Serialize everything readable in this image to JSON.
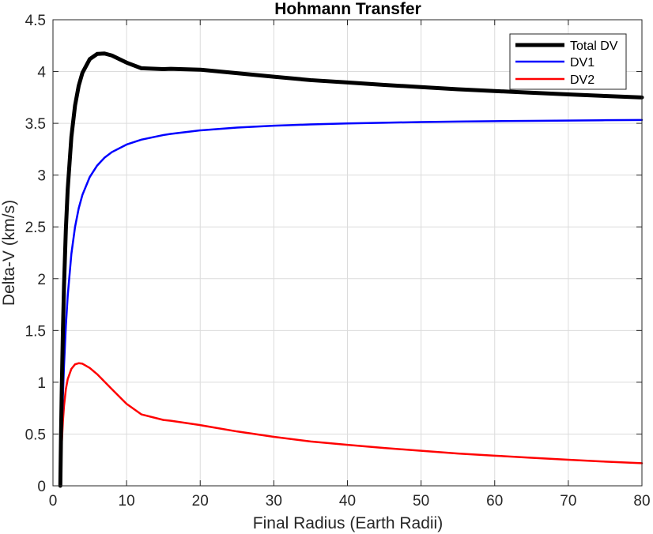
{
  "chart_data": {
    "type": "line",
    "title": "Hohmann Transfer",
    "xlabel": "Final Radius (Earth Radii)",
    "ylabel": "Delta-V (km/s)",
    "xlim": [
      0,
      80
    ],
    "ylim": [
      0,
      4.5
    ],
    "xticks": [
      0,
      10,
      20,
      30,
      40,
      50,
      60,
      70,
      80
    ],
    "yticks": [
      0,
      0.5,
      1,
      1.5,
      2,
      2.5,
      3,
      3.5,
      4,
      4.5
    ],
    "xtick_labels": [
      "0",
      "10",
      "20",
      "30",
      "40",
      "50",
      "60",
      "70",
      "80"
    ],
    "ytick_labels": [
      "0",
      "0.5",
      "1",
      "1.5",
      "2",
      "2.5",
      "3",
      "3.5",
      "4",
      "4.5"
    ],
    "grid": true,
    "legend_position": "top-right",
    "x": [
      1,
      1.1,
      1.2,
      1.35,
      1.5,
      1.75,
      2,
      2.5,
      3,
      3.5,
      4,
      5,
      6,
      7,
      8,
      10,
      12,
      15,
      16,
      20,
      25,
      30,
      35,
      40,
      45,
      50,
      55,
      60,
      65,
      70,
      75,
      80
    ],
    "series": [
      {
        "name": "Total DV",
        "color": "#000000",
        "values": [
          0,
          0.516,
          0.952,
          1.492,
          1.93,
          2.473,
          2.861,
          3.368,
          3.673,
          3.864,
          3.988,
          4.12,
          4.17,
          4.174,
          4.155,
          4.086,
          4.032,
          4.023,
          4.026,
          4.018,
          3.984,
          3.95,
          3.917,
          3.895,
          3.871,
          3.85,
          3.829,
          3.812,
          3.795,
          3.779,
          3.764,
          3.75
        ]
      },
      {
        "name": "DV1",
        "color": "#0000ff",
        "values": [
          0,
          0.284,
          0.538,
          0.87,
          1.159,
          1.541,
          1.832,
          2.239,
          2.5,
          2.68,
          2.809,
          2.982,
          3.092,
          3.168,
          3.222,
          3.295,
          3.342,
          3.387,
          3.398,
          3.432,
          3.459,
          3.477,
          3.489,
          3.499,
          3.506,
          3.512,
          3.517,
          3.521,
          3.524,
          3.527,
          3.53,
          3.532
        ]
      },
      {
        "name": "DV2",
        "color": "#ff0000",
        "values": [
          0,
          0.231,
          0.414,
          0.622,
          0.771,
          0.932,
          1.029,
          1.129,
          1.173,
          1.184,
          1.179,
          1.138,
          1.078,
          1.006,
          0.933,
          0.791,
          0.69,
          0.636,
          0.628,
          0.586,
          0.525,
          0.473,
          0.428,
          0.396,
          0.365,
          0.338,
          0.312,
          0.291,
          0.271,
          0.252,
          0.234,
          0.218
        ]
      }
    ]
  }
}
